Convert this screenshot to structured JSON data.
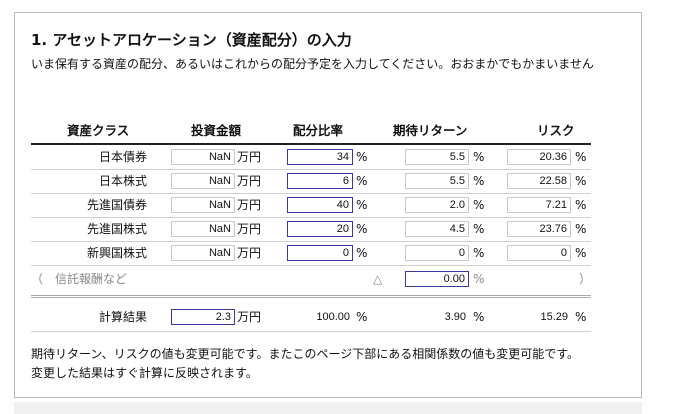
{
  "section": {
    "title": "1. アセットアロケーション（資産配分）の入力",
    "intro": "いま保有する資産の配分、あるいはこれからの配分予定を入力してください。おおまかでもかまいません"
  },
  "table": {
    "headers": {
      "asset_class": "資産クラス",
      "investment": "投資金額",
      "allocation": "配分比率",
      "expected_return": "期待リターン",
      "risk": "リスク"
    },
    "rows": [
      {
        "name": "日本債券",
        "amount": "NaN",
        "amount_unit": "万円",
        "allocation": "34",
        "alloc_unit": "%",
        "return": "5.5",
        "return_unit": "%",
        "risk": "20.36",
        "risk_unit": "%"
      },
      {
        "name": "日本株式",
        "amount": "NaN",
        "amount_unit": "万円",
        "allocation": "6",
        "alloc_unit": "%",
        "return": "5.5",
        "return_unit": "%",
        "risk": "22.58",
        "risk_unit": "%"
      },
      {
        "name": "先進国債券",
        "amount": "NaN",
        "amount_unit": "万円",
        "allocation": "40",
        "alloc_unit": "%",
        "return": "2.0",
        "return_unit": "%",
        "risk": "7.21",
        "risk_unit": "%"
      },
      {
        "name": "先進国株式",
        "amount": "NaN",
        "amount_unit": "万円",
        "allocation": "20",
        "alloc_unit": "%",
        "return": "4.5",
        "return_unit": "%",
        "risk": "23.76",
        "risk_unit": "%"
      },
      {
        "name": "新興国株式",
        "amount": "NaN",
        "amount_unit": "万円",
        "allocation": "0",
        "alloc_unit": "%",
        "return": "0",
        "return_unit": "%",
        "risk": "0",
        "risk_unit": "%"
      }
    ],
    "fees": {
      "open": "（",
      "label": "信託報酬など",
      "triangle": "△",
      "value": "0.00",
      "unit": "%",
      "close": "）"
    },
    "result": {
      "label": "計算結果",
      "amount": "2.3",
      "amount_unit": "万円",
      "allocation": "100.00",
      "alloc_unit": "%",
      "return": "3.90",
      "return_unit": "%",
      "risk": "15.29",
      "risk_unit": "%"
    }
  },
  "notes": [
    "期待リターン、リスクの値も変更可能です。またこのページ下部にある相関係数の値も変更可能です。",
    "変更した結果はすぐ計算に反映されます。"
  ]
}
